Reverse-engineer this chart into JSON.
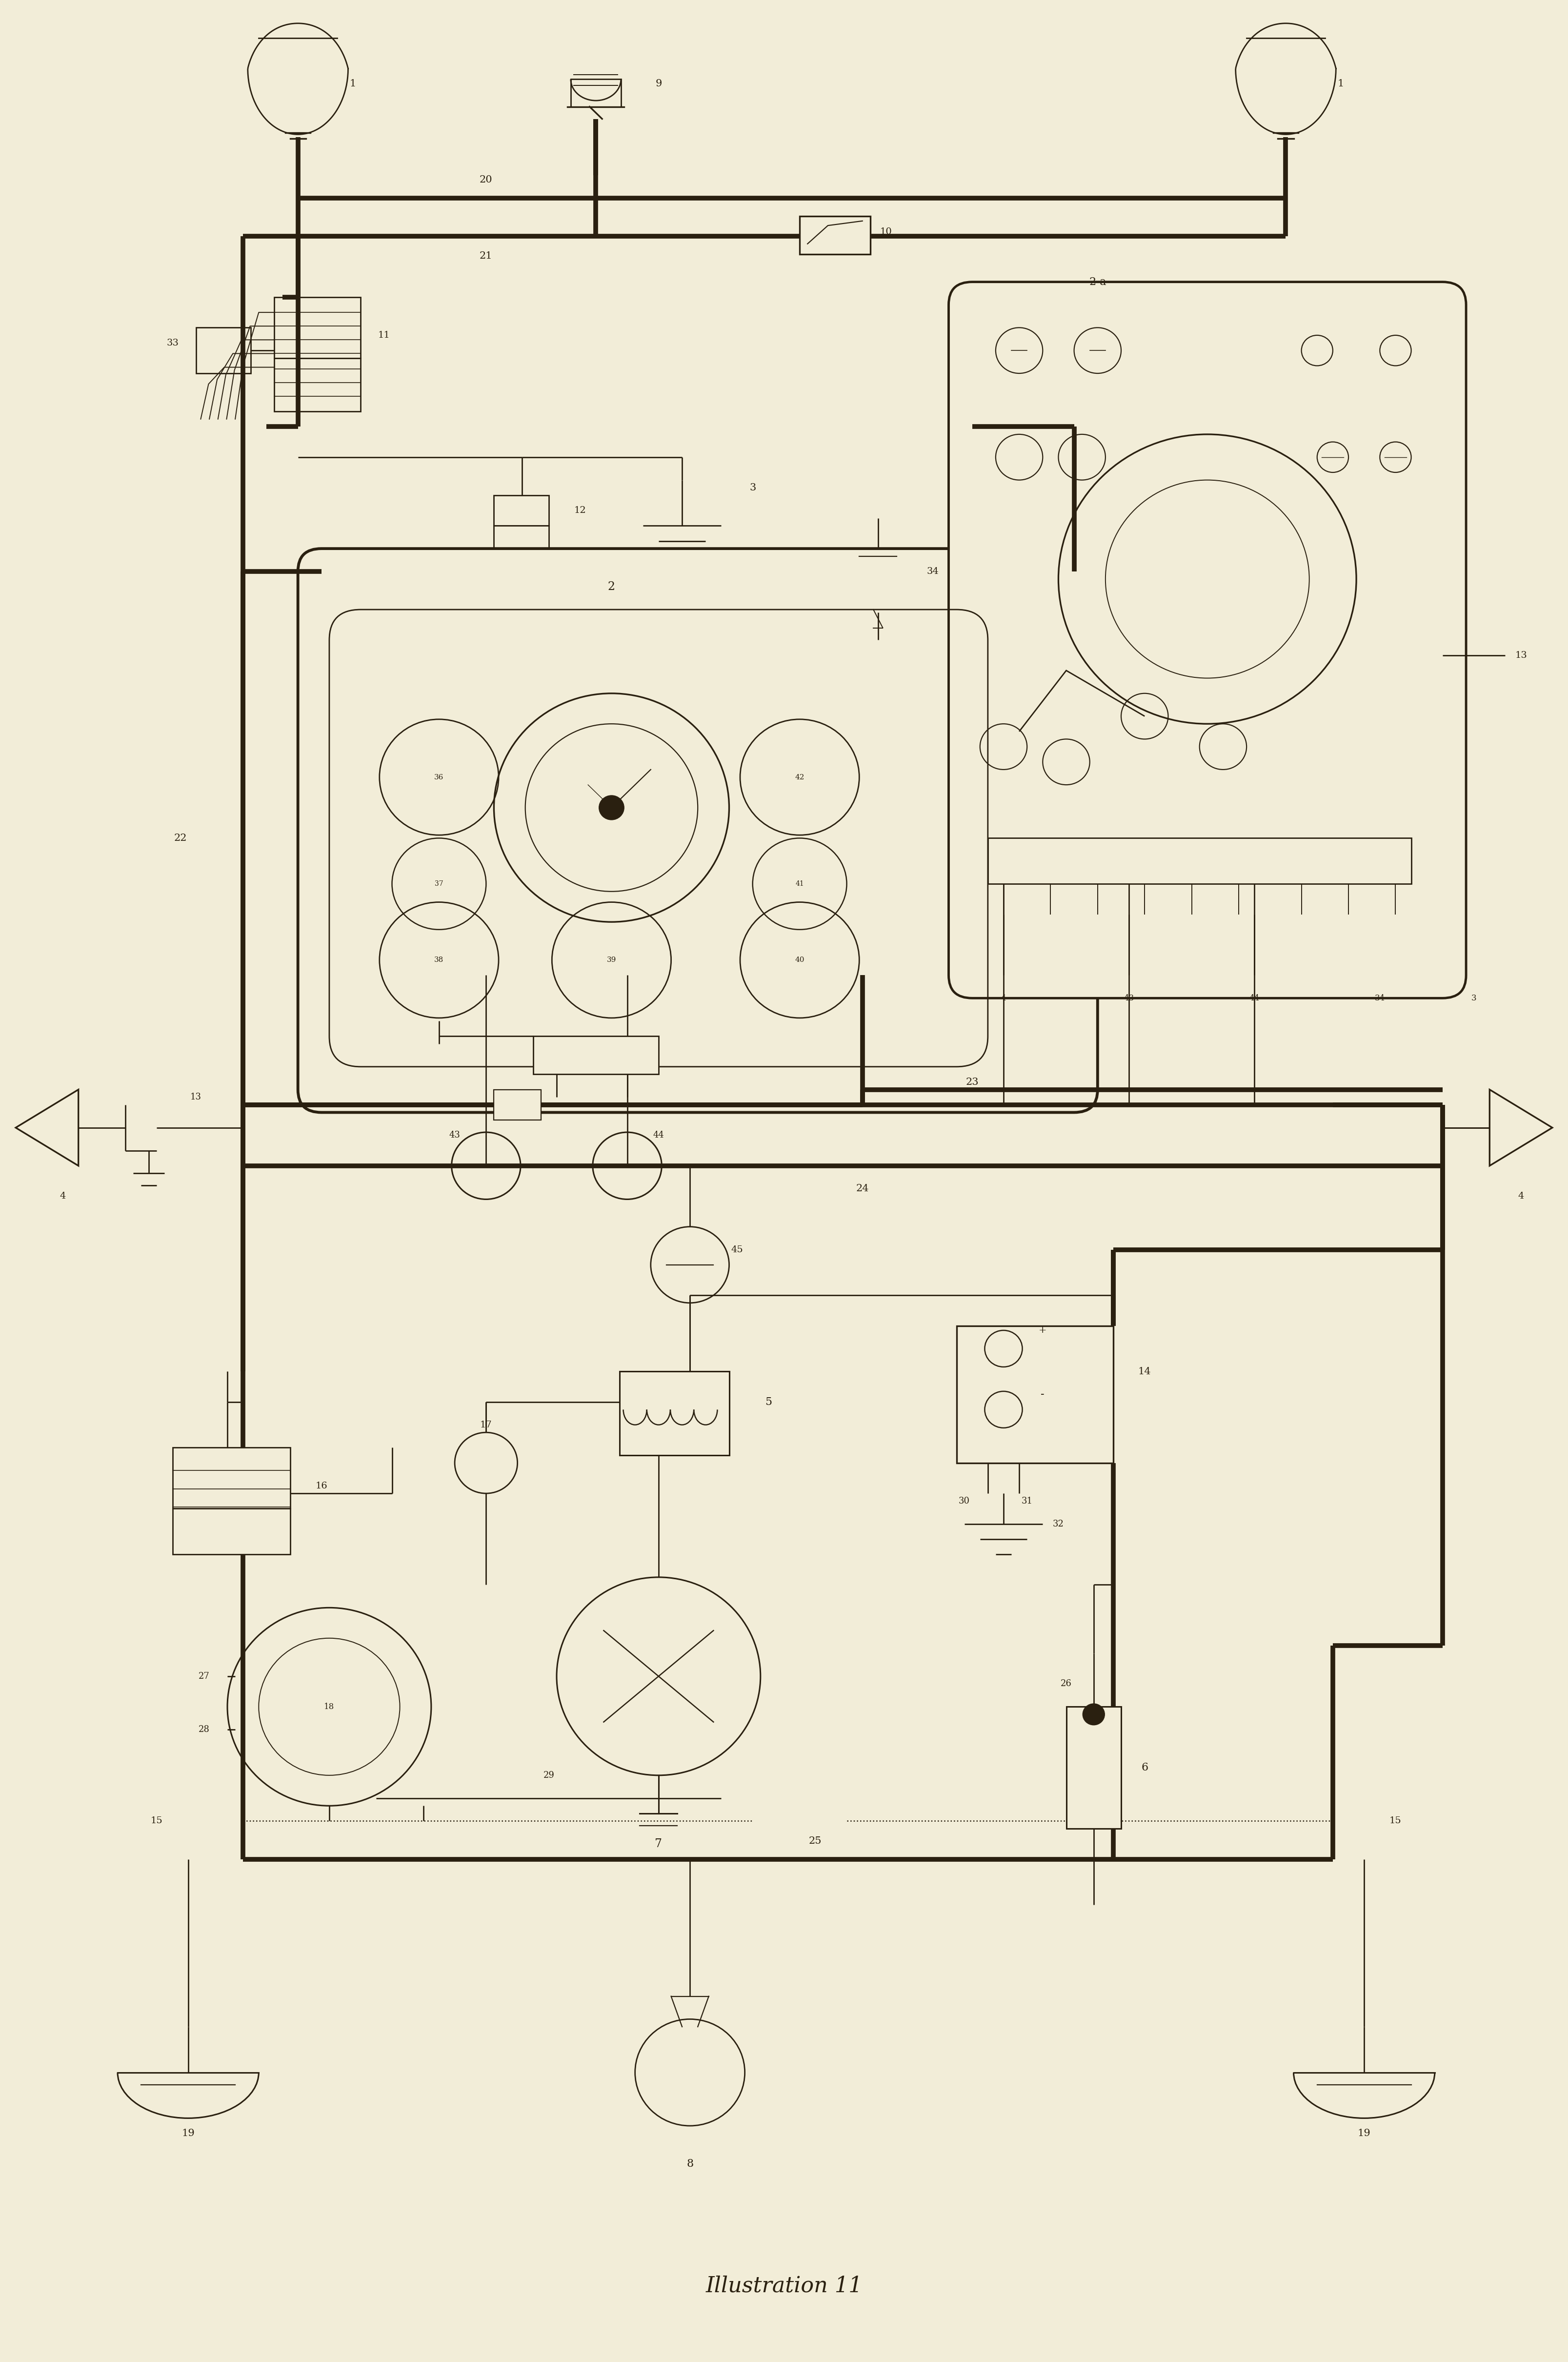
{
  "bg_color": "#f2edd8",
  "line_color": "#2a2010",
  "lw_thick": 7.0,
  "lw_med": 3.5,
  "lw_thin": 2.0,
  "title": "Illustration 11",
  "title_fontsize": 32,
  "fig_width": 32.14,
  "fig_height": 48.4,
  "xlim": [
    0,
    100
  ],
  "ylim": [
    0,
    155
  ]
}
